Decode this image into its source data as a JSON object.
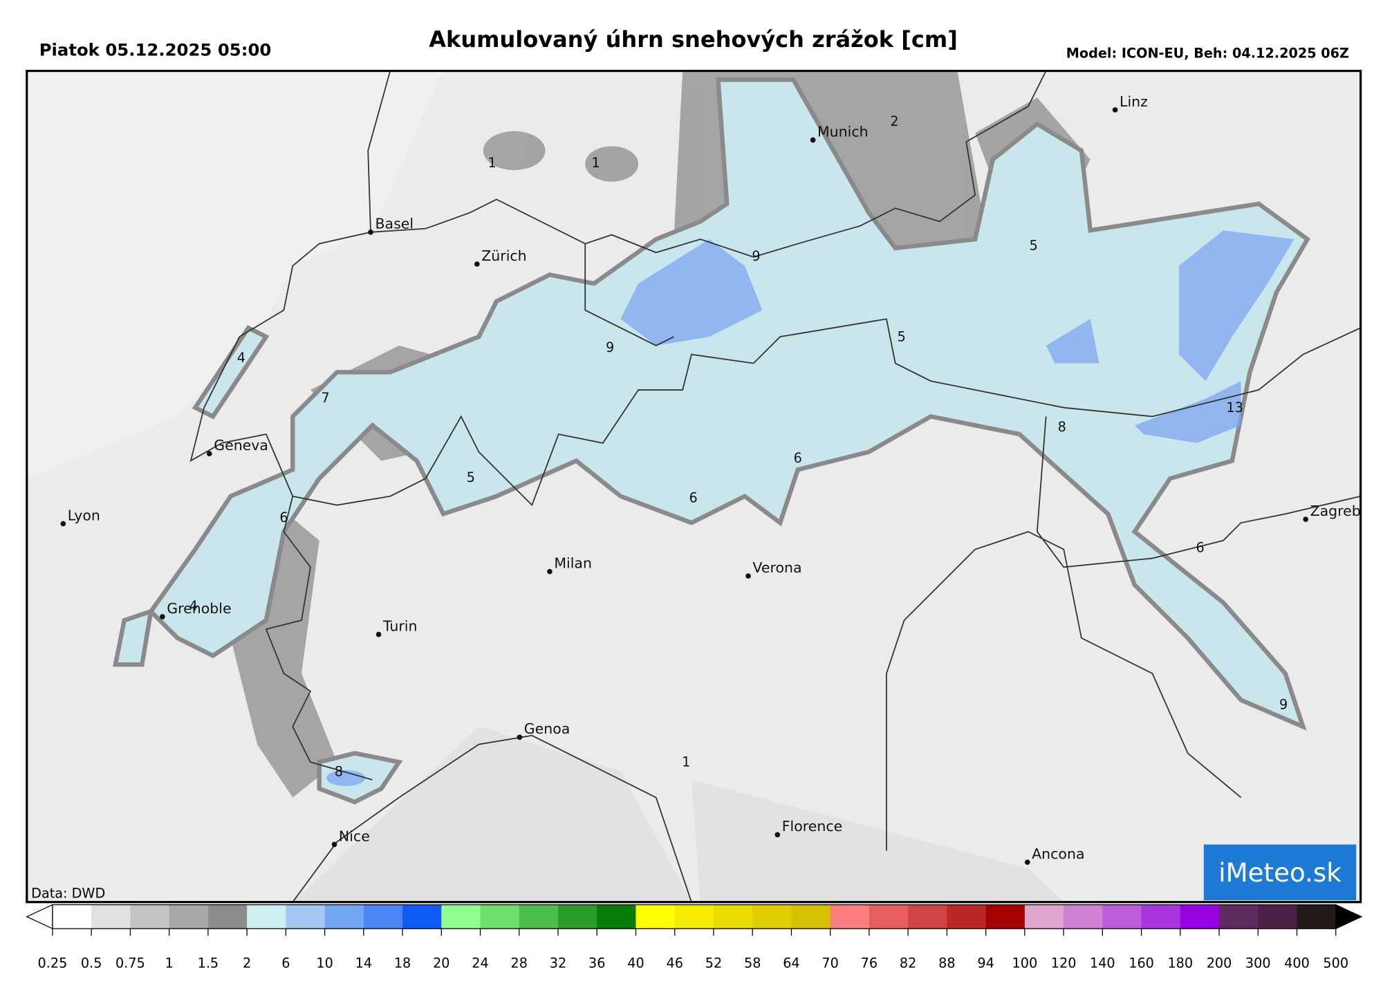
{
  "header": {
    "date": "Piatok 05.12.2025 05:00",
    "title": "Akumulovaný úhrn snehových zrážok [cm]",
    "model": "Model: ICON-EU, Beh: 04.12.2025 06Z"
  },
  "map": {
    "cities": [
      "Linz",
      "Munich",
      "Basel",
      "Zürich",
      "Geneva",
      "Lyon",
      "Grenoble",
      "Turin",
      "Milan",
      "Verona",
      "Genoa",
      "Nice",
      "Florence",
      "Ancona",
      "Zagreb"
    ],
    "contour_labels": [
      "2",
      "1",
      "1",
      "9",
      "5",
      "9",
      "5",
      "4",
      "7",
      "13",
      "8",
      "6",
      "5",
      "6",
      "6",
      "6",
      "4",
      "9",
      "8",
      "1"
    ],
    "source": "Data: DWD",
    "logo": "iMeteo.sk"
  },
  "colorbar": {
    "ticks": [
      0.25,
      0.5,
      0.75,
      1,
      1.5,
      2,
      6,
      10,
      14,
      18,
      20,
      24,
      28,
      32,
      36,
      40,
      46,
      52,
      58,
      64,
      70,
      76,
      82,
      88,
      94,
      100,
      120,
      140,
      160,
      180,
      200,
      300,
      400,
      500
    ],
    "colors": [
      "#ffffff",
      "#e1e1e1",
      "#c4c4c4",
      "#a8a8a8",
      "#8c8c8c",
      "#cdeff2",
      "#a3c8f1",
      "#74a5f3",
      "#4a86f5",
      "#0f5cf7",
      "#90fb8f",
      "#6ddd6c",
      "#4bbd4a",
      "#2a9c29",
      "#077c07",
      "#ffff00",
      "#f5ea00",
      "#eadc00",
      "#e0cf00",
      "#d6c100",
      "#fb7d7d",
      "#e85d5d",
      "#d24343",
      "#bc2626",
      "#a60000",
      "#dfa6cf",
      "#cf82d5",
      "#bd5bda",
      "#aa34e0",
      "#9802e4",
      "#5e2c5f",
      "#4e2248",
      "#241a1a"
    ]
  }
}
